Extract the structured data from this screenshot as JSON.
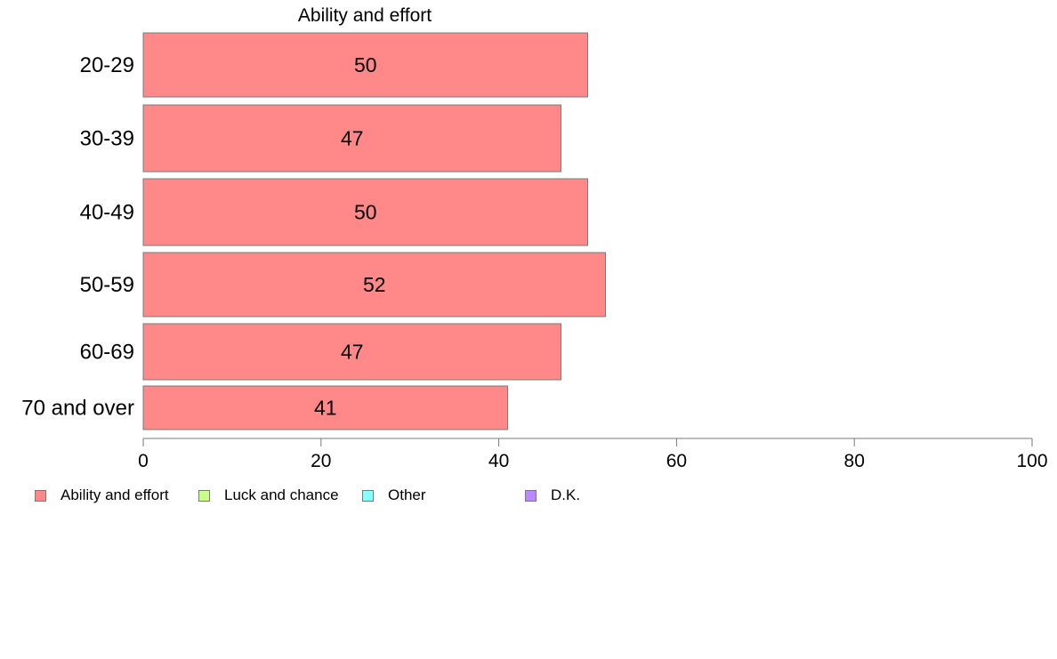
{
  "chart_data": {
    "type": "bar",
    "orientation": "horizontal",
    "title": "Ability and effort",
    "categories": [
      "20-29",
      "30-39",
      "40-49",
      "50-59",
      "60-69",
      "70 and over"
    ],
    "series": [
      {
        "name": "Ability and effort",
        "color": "#ff8888",
        "values": [
          50,
          47,
          50,
          52,
          47,
          41
        ],
        "labels": [
          "50",
          "47",
          "50",
          "52",
          "47",
          "41"
        ]
      }
    ],
    "xlim": [
      0,
      100
    ],
    "xticks": [
      0,
      20,
      40,
      60,
      80,
      100
    ],
    "xtick_labels": [
      "0",
      "20",
      "40",
      "60",
      "80",
      "100"
    ],
    "grid": false,
    "legend_position": "bottom-left",
    "legend": [
      {
        "label": "Ability and effort",
        "color": "#ff8888"
      },
      {
        "label": "Luck and chance",
        "color": "#c8ff88"
      },
      {
        "label": "Other",
        "color": "#88ffff"
      },
      {
        "label": "D.K.",
        "color": "#bb88ff"
      }
    ]
  }
}
